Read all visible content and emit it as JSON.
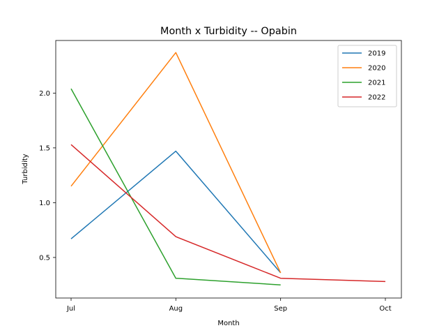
{
  "chart_data": {
    "type": "line",
    "title": "Month x Turbidity -- Opabin",
    "xlabel": "Month",
    "ylabel": "Turbidity",
    "categories": [
      "Jul",
      "Aug",
      "Sep",
      "Oct"
    ],
    "yticks": [
      "0.5",
      "1.0",
      "1.5",
      "2.0"
    ],
    "ylim": [
      0.13,
      2.48
    ],
    "grid": false,
    "legend_position": "top-right",
    "series": [
      {
        "name": "2019",
        "color": "#1f77b4",
        "values": [
          0.67,
          1.47,
          0.36,
          null
        ]
      },
      {
        "name": "2020",
        "color": "#ff7f0e",
        "values": [
          1.15,
          2.37,
          0.36,
          null
        ]
      },
      {
        "name": "2021",
        "color": "#2ca02c",
        "values": [
          2.04,
          0.31,
          0.25,
          null
        ]
      },
      {
        "name": "2022",
        "color": "#d62728",
        "values": [
          1.53,
          0.69,
          0.31,
          0.28
        ]
      }
    ]
  }
}
